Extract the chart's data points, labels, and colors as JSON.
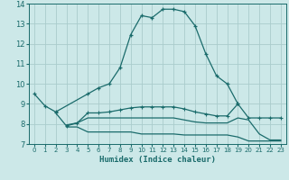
{
  "xlabel": "Humidex (Indice chaleur)",
  "bg_color": "#cce8e8",
  "grid_color": "#aacccc",
  "line_color": "#1a6b6b",
  "xlim": [
    -0.5,
    23.5
  ],
  "ylim": [
    7,
    14
  ],
  "xticks": [
    0,
    1,
    2,
    3,
    4,
    5,
    6,
    7,
    8,
    9,
    10,
    11,
    12,
    13,
    14,
    15,
    16,
    17,
    18,
    19,
    20,
    21,
    22,
    23
  ],
  "yticks": [
    7,
    8,
    9,
    10,
    11,
    12,
    13,
    14
  ],
  "series_main": {
    "x": [
      0,
      1,
      2,
      5,
      6,
      7,
      8,
      9,
      10,
      11,
      12,
      13,
      14,
      15,
      16,
      17,
      18,
      19
    ],
    "y": [
      9.5,
      8.9,
      8.6,
      9.5,
      9.8,
      10.0,
      10.8,
      12.45,
      13.4,
      13.3,
      13.72,
      13.72,
      13.6,
      12.9,
      11.5,
      10.4,
      10.0,
      9.0
    ]
  },
  "series_upper": {
    "x": [
      2,
      3,
      4,
      5,
      6,
      7,
      8,
      9,
      10,
      11,
      12,
      13,
      14,
      15,
      16,
      17,
      18,
      19,
      20,
      21,
      22,
      23
    ],
    "y": [
      8.55,
      7.9,
      8.05,
      8.55,
      8.55,
      8.6,
      8.7,
      8.8,
      8.85,
      8.85,
      8.85,
      8.85,
      8.75,
      8.6,
      8.5,
      8.4,
      8.4,
      9.0,
      8.3,
      8.3,
      8.3,
      8.3
    ]
  },
  "series_middle": {
    "x": [
      3,
      4,
      5,
      6,
      7,
      8,
      9,
      10,
      11,
      12,
      13,
      14,
      15,
      16,
      17,
      18,
      19,
      20,
      21,
      22,
      23
    ],
    "y": [
      7.95,
      8.05,
      8.3,
      8.3,
      8.3,
      8.3,
      8.3,
      8.3,
      8.3,
      8.3,
      8.3,
      8.2,
      8.1,
      8.05,
      8.05,
      8.05,
      8.3,
      8.2,
      7.5,
      7.2,
      7.2
    ]
  },
  "series_lower": {
    "x": [
      3,
      4,
      5,
      6,
      7,
      8,
      9,
      10,
      11,
      12,
      13,
      14,
      15,
      16,
      17,
      18,
      19,
      20,
      21,
      22,
      23
    ],
    "y": [
      7.85,
      7.85,
      7.6,
      7.6,
      7.6,
      7.6,
      7.6,
      7.5,
      7.5,
      7.5,
      7.5,
      7.45,
      7.45,
      7.45,
      7.45,
      7.45,
      7.35,
      7.15,
      7.15,
      7.15,
      7.15
    ]
  }
}
